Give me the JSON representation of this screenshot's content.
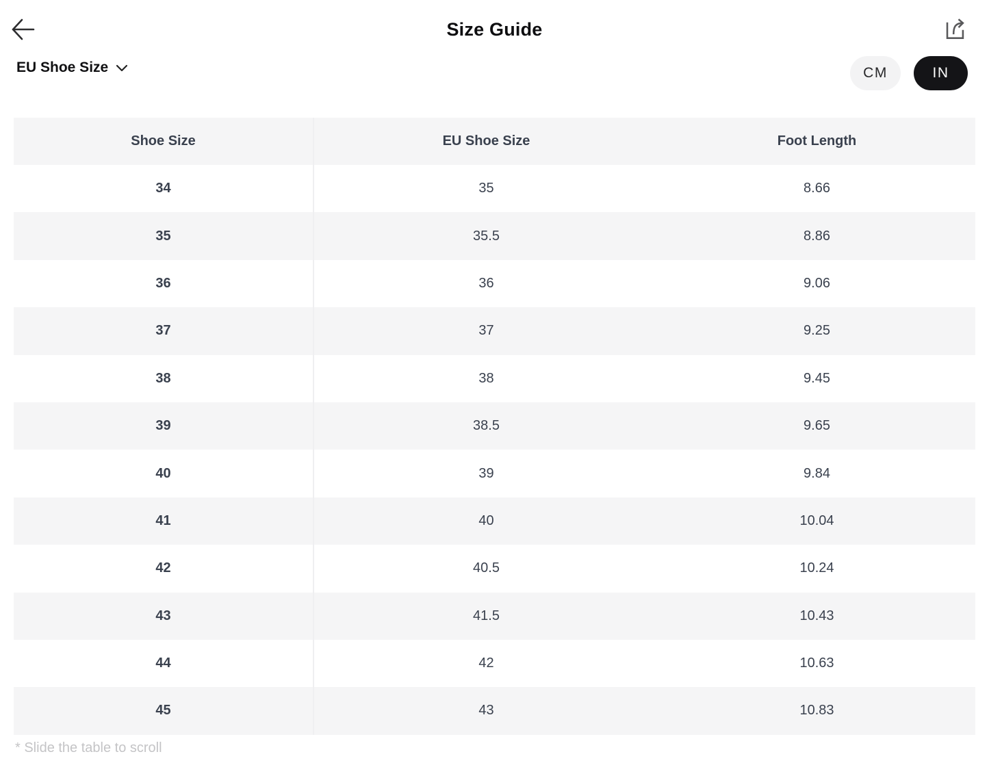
{
  "header": {
    "title": "Size Guide",
    "back_icon": "arrow-left",
    "share_icon": "share-export"
  },
  "controls": {
    "size_system_selector": {
      "label": "EU Shoe Size",
      "chevron_icon": "chevron-down"
    },
    "unit_toggle": {
      "options": [
        {
          "label": "CM",
          "selected": false
        },
        {
          "label": "IN",
          "selected": true
        }
      ]
    }
  },
  "table": {
    "columns": [
      "Shoe Size",
      "EU Shoe Size",
      "Foot Length"
    ],
    "rows": [
      [
        "34",
        "35",
        "8.66"
      ],
      [
        "35",
        "35.5",
        "8.86"
      ],
      [
        "36",
        "36",
        "9.06"
      ],
      [
        "37",
        "37",
        "9.25"
      ],
      [
        "38",
        "38",
        "9.45"
      ],
      [
        "39",
        "38.5",
        "9.65"
      ],
      [
        "40",
        "39",
        "9.84"
      ],
      [
        "41",
        "40",
        "10.04"
      ],
      [
        "42",
        "40.5",
        "10.24"
      ],
      [
        "43",
        "41.5",
        "10.43"
      ],
      [
        "44",
        "42",
        "10.63"
      ],
      [
        "45",
        "43",
        "10.83"
      ]
    ]
  },
  "footer": {
    "note": "* Slide the table to scroll"
  },
  "colors": {
    "stripe": "#f5f5f6",
    "divider": "#efeff1",
    "text_dark": "#3a414e",
    "title": "#0e0e10",
    "muted": "#c4c4c6",
    "pill_dark": "#141417",
    "pill_light": "#f3f3f4"
  }
}
